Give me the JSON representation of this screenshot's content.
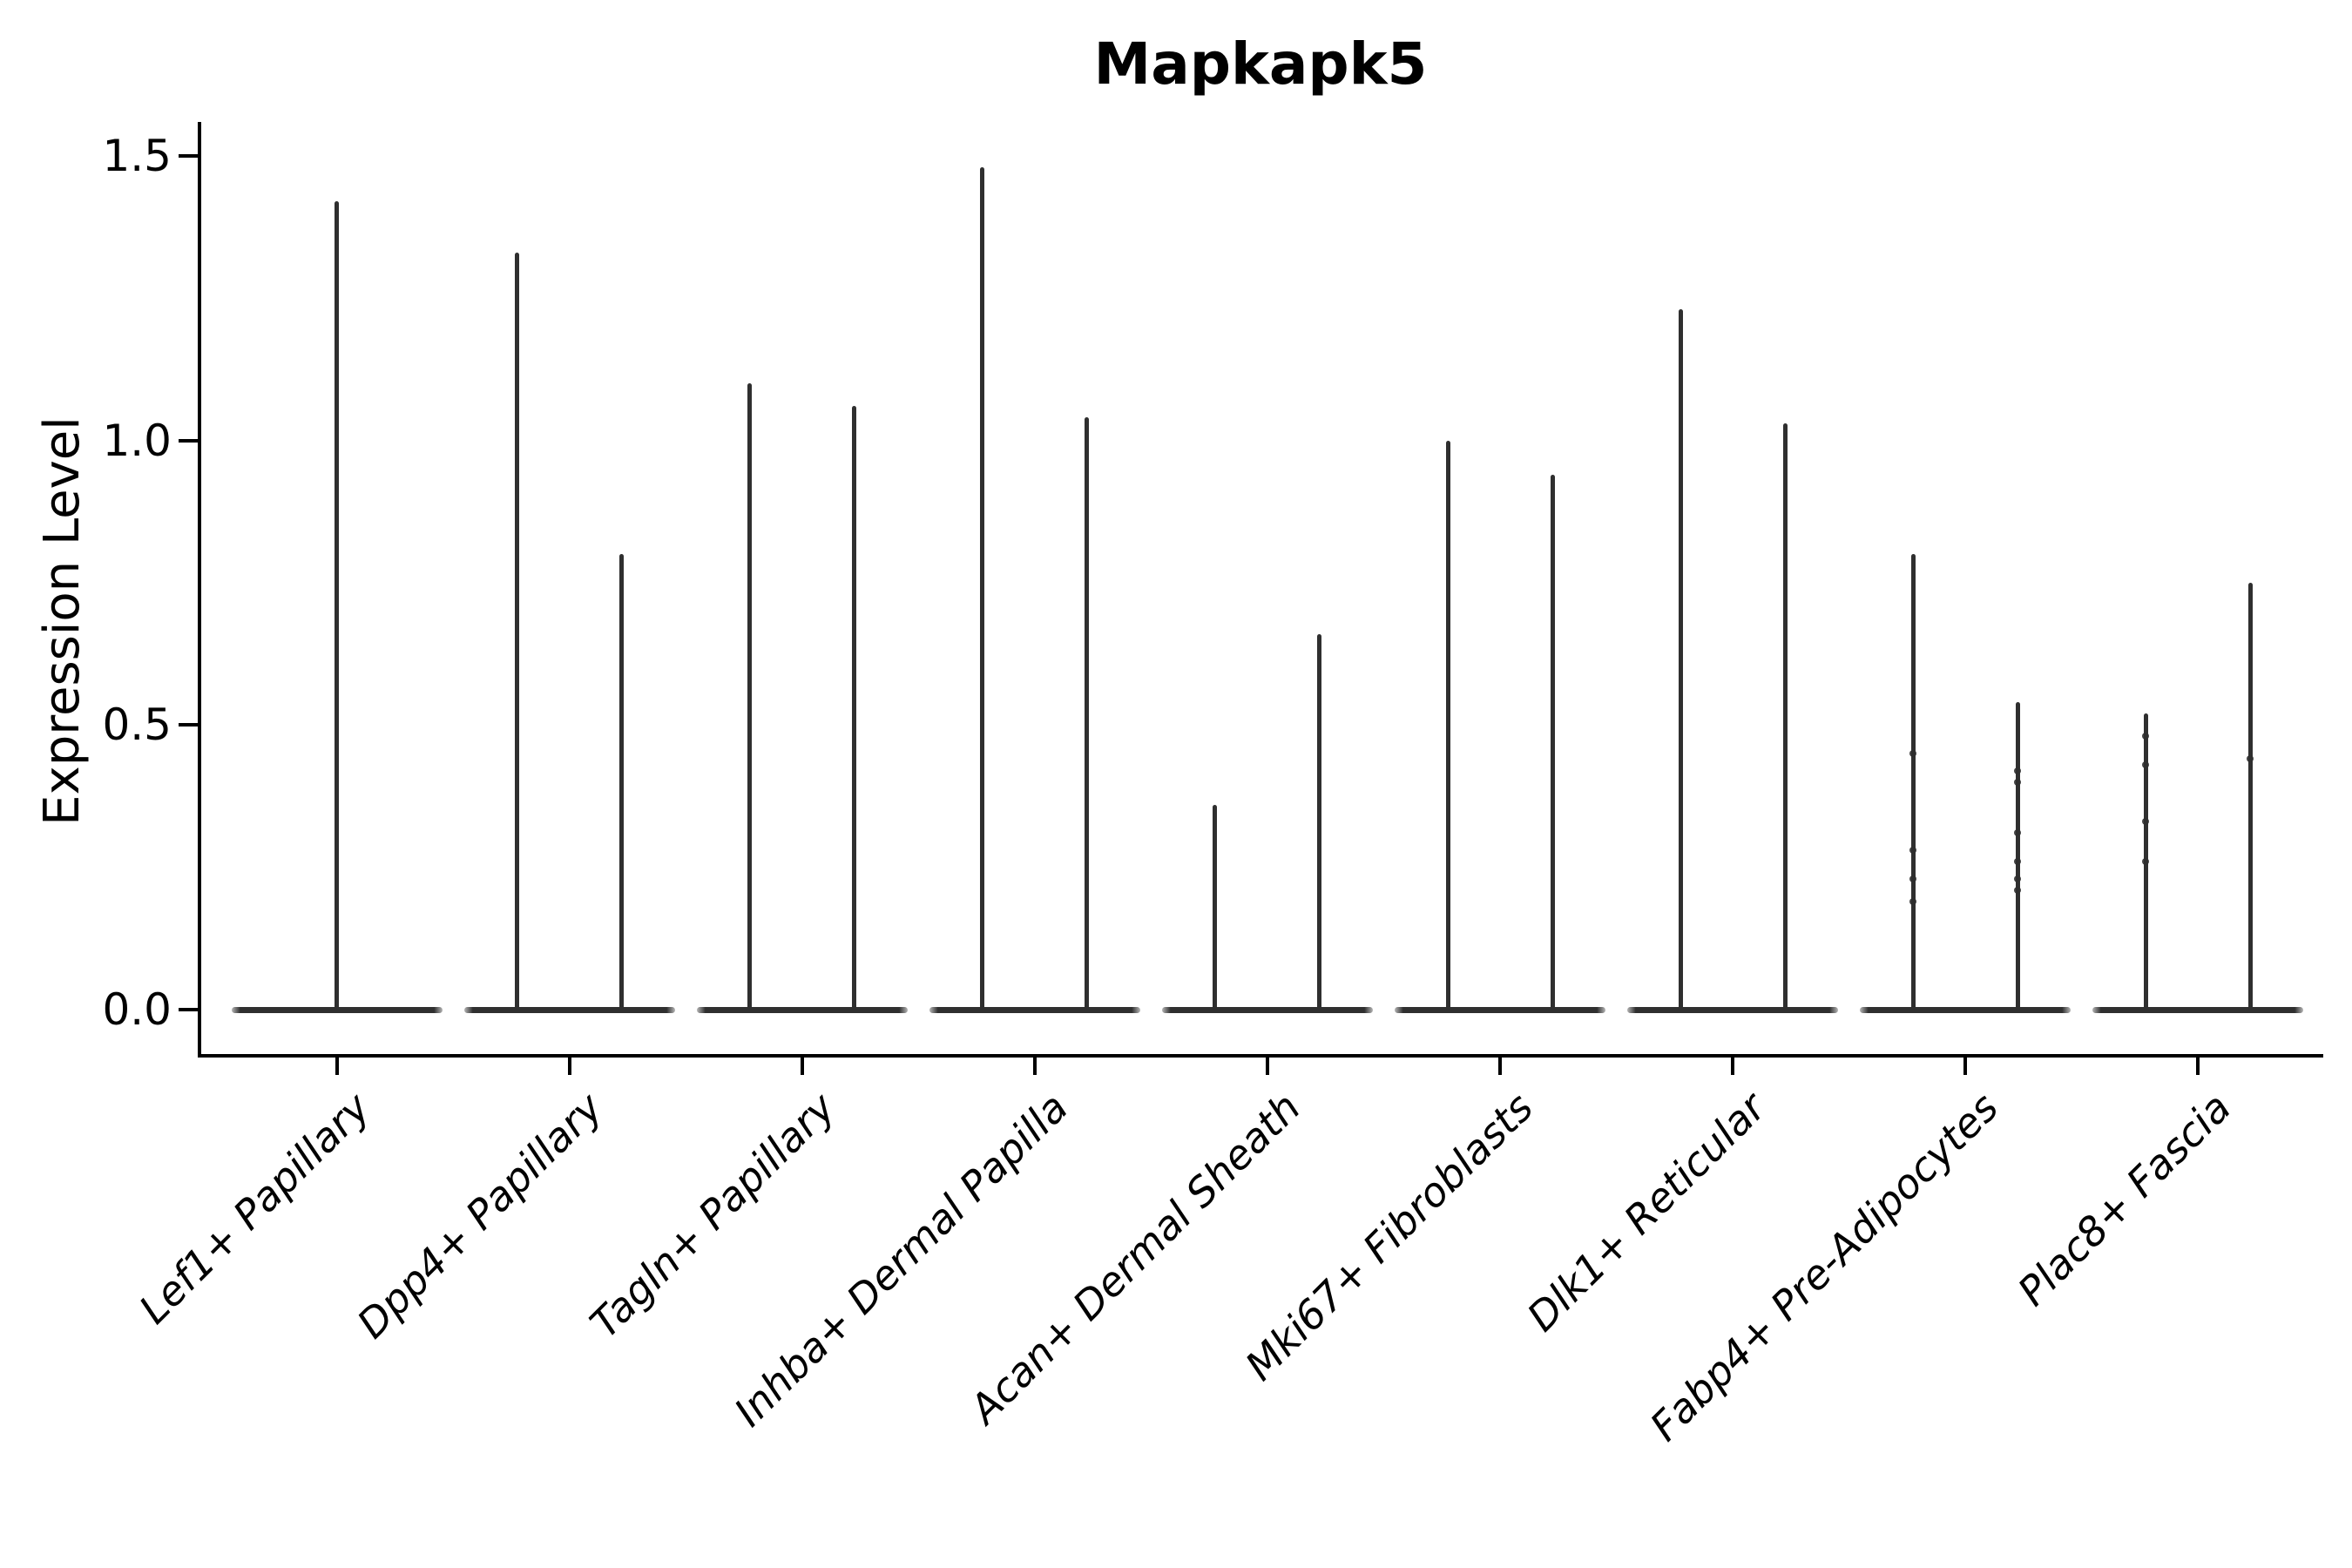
{
  "chart_data": {
    "type": "violin",
    "title": "Mapkapk5",
    "ylabel": "Expression Level",
    "xlabel": "",
    "ylim": [
      -0.08,
      1.56
    ],
    "yticks": [
      0.0,
      0.5,
      1.0,
      1.5
    ],
    "ytick_labels": [
      "0.0",
      "0.5",
      "1.0",
      "1.5"
    ],
    "grid": false,
    "legend": "none",
    "background_color": "#ffffff",
    "violin_color": "#2f2f2f",
    "axis_color": "#000000",
    "categories": [
      "Lef1+ Papillary",
      "Dpp4+ Papillary",
      "Tagln+ Papillary",
      "Inhba+ Dermal Papilla",
      "Acan+ Dermal Sheath",
      "Mki67+ Fibroblasts",
      "Dlk1+ Reticular",
      "Fabp4+ Pre-Adipocytes",
      "Plac8+ Fascia"
    ],
    "violins": [
      {
        "category": "Lef1+ Papillary",
        "max_expression": [
          1.42
        ]
      },
      {
        "category": "Dpp4+ Papillary",
        "max_expression": [
          1.33,
          0.8
        ]
      },
      {
        "category": "Tagln+ Papillary",
        "max_expression": [
          1.1,
          1.06
        ]
      },
      {
        "category": "Inhba+ Dermal Papilla",
        "max_expression": [
          1.48,
          1.04
        ]
      },
      {
        "category": "Acan+ Dermal Sheath",
        "max_expression": [
          0.36,
          0.66
        ]
      },
      {
        "category": "Mki67+ Fibroblasts",
        "max_expression": [
          1.0,
          0.94
        ]
      },
      {
        "category": "Dlk1+ Reticular",
        "max_expression": [
          1.23,
          1.03
        ]
      },
      {
        "category": "Fabp4+ Pre-Adipocytes",
        "max_expression": [
          0.8,
          0.54
        ]
      },
      {
        "category": "Plac8+ Fascia",
        "max_expression": [
          0.52,
          0.75
        ]
      }
    ],
    "jitter_points": [
      {
        "category": "Fabp4+ Pre-Adipocytes",
        "violin": 0,
        "values": [
          0.45,
          0.28,
          0.23,
          0.19
        ]
      },
      {
        "category": "Fabp4+ Pre-Adipocytes",
        "violin": 1,
        "values": [
          0.42,
          0.4,
          0.31,
          0.26,
          0.23,
          0.21
        ]
      },
      {
        "category": "Plac8+ Fascia",
        "violin": 0,
        "values": [
          0.48,
          0.43,
          0.33,
          0.26
        ]
      },
      {
        "category": "Plac8+ Fascia",
        "violin": 1,
        "values": [
          0.44
        ]
      }
    ]
  }
}
